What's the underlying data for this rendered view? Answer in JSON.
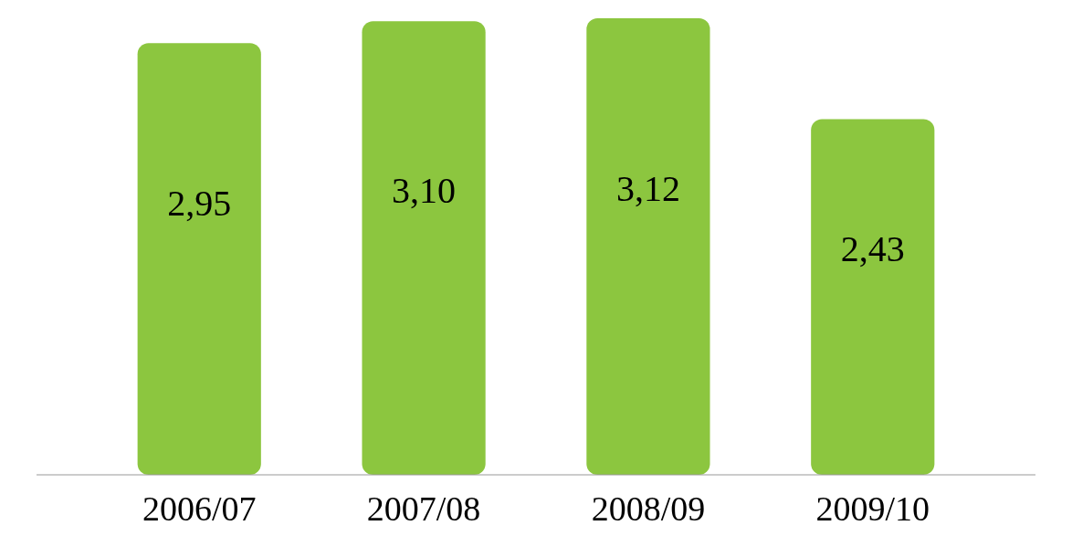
{
  "chart_data": {
    "type": "bar",
    "categories": [
      "2006/07",
      "2007/08",
      "2008/09",
      "2009/10"
    ],
    "values": [
      2.95,
      3.1,
      3.12,
      2.43
    ],
    "value_labels": [
      "2,95",
      "3,10",
      "3,12",
      "2,43"
    ],
    "color": "#8cc63f"
  }
}
